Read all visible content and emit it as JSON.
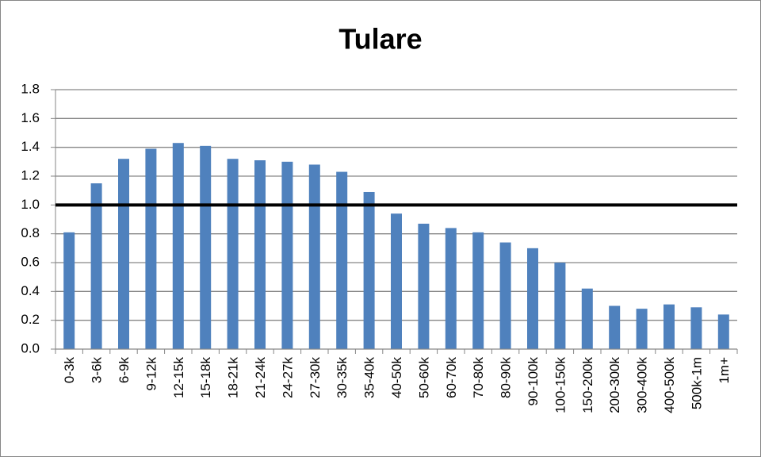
{
  "chart_data": {
    "type": "bar",
    "title": "Tulare",
    "categories": [
      "0-3k",
      "3-6k",
      "6-9k",
      "9-12k",
      "12-15k",
      "15-18k",
      "18-21k",
      "21-24k",
      "24-27k",
      "27-30k",
      "30-35k",
      "35-40k",
      "40-50k",
      "50-60k",
      "60-70k",
      "70-80k",
      "80-90k",
      "90-100k",
      "100-150k",
      "150-200k",
      "200-300k",
      "300-400k",
      "400-500k",
      "500k-1m",
      "1m+"
    ],
    "values": [
      0.81,
      1.15,
      1.32,
      1.39,
      1.43,
      1.41,
      1.32,
      1.31,
      1.3,
      1.28,
      1.23,
      1.09,
      0.94,
      0.87,
      0.84,
      0.81,
      0.74,
      0.7,
      0.6,
      0.42,
      0.3,
      0.28,
      0.31,
      0.29,
      0.24
    ],
    "color": "#4f81bd",
    "ylim": [
      0,
      1.8
    ],
    "yticks": [
      {
        "value": 0,
        "label": "0.0"
      },
      0.2,
      0.4,
      0.6,
      0.8,
      {
        "value": 1,
        "label": "1.0"
      },
      1.2,
      1.4,
      1.6,
      1.8
    ],
    "grid": true,
    "reference_line": 1
  }
}
